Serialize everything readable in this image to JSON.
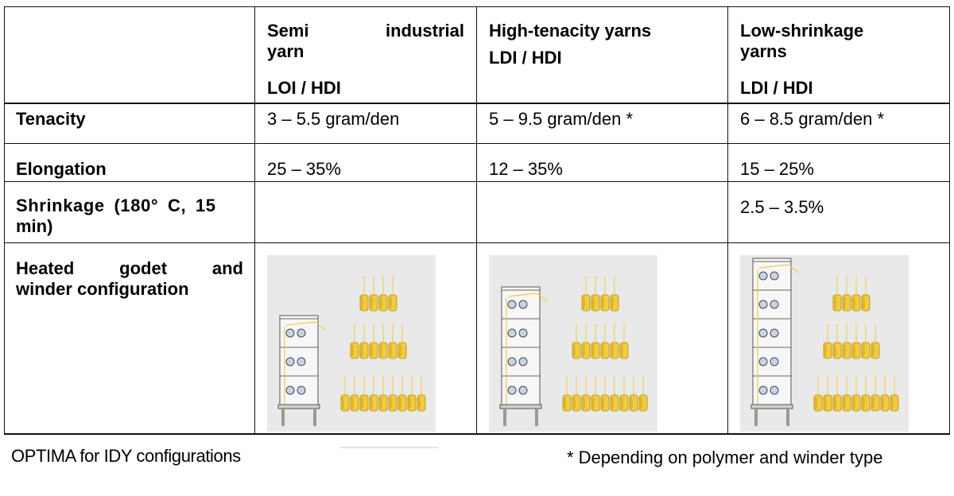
{
  "header": {
    "col1": {
      "title_line1_a": "Semi",
      "title_line1_b": "industrial",
      "title_line2": "yarn",
      "subtitle": "LOI / HDI"
    },
    "col2": {
      "title": "High-tenacity yarns",
      "subtitle": "LDI / HDI"
    },
    "col3": {
      "title_line1": "Low-shrinkage",
      "title_line2": "yarns",
      "subtitle": "LDI / HDI"
    }
  },
  "rows": {
    "tenacity": {
      "label": "Tenacity",
      "c1": "3 – 5.5 gram/den",
      "c2": "5 – 9.5 gram/den *",
      "c3": "6 – 8.5 gram/den *"
    },
    "elongation": {
      "label": "Elongation",
      "c1": "25 – 35%",
      "c2": "12 – 35%",
      "c3": "15 – 25%"
    },
    "shrinkage": {
      "label_line1": "Shrinkage (180° C, 15",
      "label_line2": "min)",
      "c1": "",
      "c2": "",
      "c3": "2.5 – 3.5%"
    },
    "config": {
      "label_line1_a": "Heated",
      "label_line1_b": "godet",
      "label_line1_c": "and",
      "label_line2": "winder configuration"
    }
  },
  "footer": {
    "left": "OPTIMA for IDY configurations",
    "right": "* Depending on polymer and winder type"
  },
  "colors": {
    "bobbin": "#f3cc3a",
    "panel": "#e9e9e9",
    "godet": "#c8d4e3"
  }
}
